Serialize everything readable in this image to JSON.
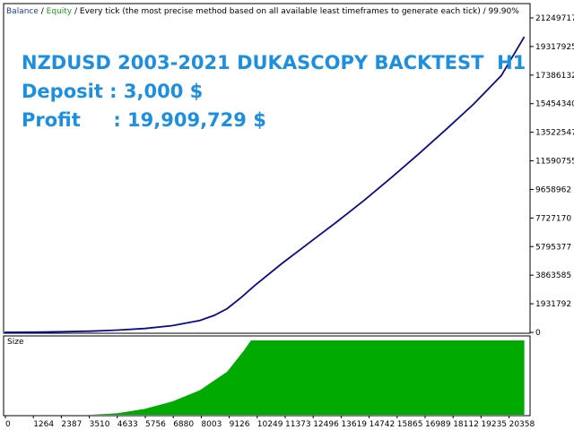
{
  "header": {
    "balance": "Balance",
    "sep1": " / ",
    "equity": "Equity",
    "text": " / Every tick (the most precise method based on all available least timeframes to generate each tick)  / 99.90%"
  },
  "annotation": {
    "title": "NZDUSD 2003-2021 DUKASCOPY BACKTEST  H1",
    "deposit": "Deposit : 3,000 $",
    "profit": "Profit     : 19,909,729 $"
  },
  "subpanel": {
    "label": "Size"
  },
  "colors": {
    "balance": "#0b0b8a",
    "equity": "#1c9b1c",
    "size": "#00aa00",
    "border": "#000000"
  },
  "chart_data": {
    "type": "line",
    "x_ticks": [
      "0",
      "1264",
      "2387",
      "3510",
      "4633",
      "5756",
      "6880",
      "8003",
      "9126",
      "10249",
      "11373",
      "12496",
      "13619",
      "14742",
      "15865",
      "16989",
      "18112",
      "19235",
      "20358"
    ],
    "y_ticks": [
      "0",
      "1931792",
      "3863585",
      "5795377",
      "7727170",
      "9658962",
      "11590755",
      "13522547",
      "15454340",
      "17386132",
      "19317925",
      "21249717"
    ],
    "ylim": [
      0,
      21249717
    ],
    "xlim": [
      0,
      21500
    ],
    "series": [
      {
        "name": "Balance",
        "x": [
          0,
          1264,
          2387,
          3510,
          4633,
          5756,
          6880,
          8003,
          8600,
          9126,
          9700,
          10249,
          11373,
          12496,
          13619,
          14742,
          15865,
          16989,
          18112,
          19235,
          20358,
          21300
        ],
        "y": [
          3000,
          15000,
          40000,
          80000,
          150000,
          260000,
          450000,
          800000,
          1150000,
          1600000,
          2350000,
          3150000,
          4650000,
          6050000,
          7450000,
          8900000,
          10450000,
          12050000,
          13700000,
          15400000,
          17300000,
          19912729
        ]
      }
    ],
    "size_panel": {
      "x": [
        0,
        3510,
        4633,
        5756,
        6880,
        8003,
        9126,
        9800,
        10100,
        21300
      ],
      "y": [
        0,
        0,
        0.02,
        0.08,
        0.18,
        0.33,
        0.58,
        0.86,
        1.0,
        1.0
      ]
    }
  }
}
